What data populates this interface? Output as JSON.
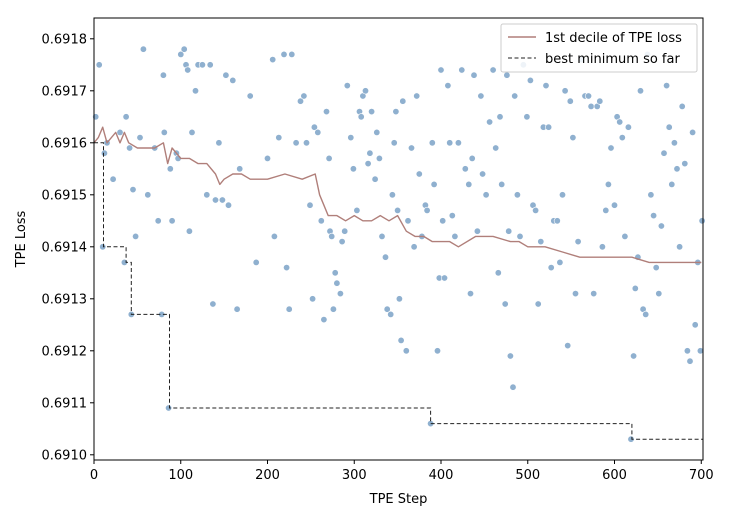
{
  "chart_data": {
    "type": "scatter",
    "title": "",
    "xlabel": "TPE Step",
    "ylabel": "TPE Loss",
    "xlim": [
      0,
      702
    ],
    "ylim": [
      0.69099,
      0.69184
    ],
    "xticks": [
      0,
      100,
      200,
      300,
      400,
      500,
      600,
      700
    ],
    "yticks": [
      0.691,
      0.6911,
      0.6912,
      0.6913,
      0.6914,
      0.6915,
      0.6916,
      0.6917,
      0.6918
    ],
    "ytick_labels": [
      "0.6910",
      "0.6911",
      "0.6912",
      "0.6913",
      "0.6914",
      "0.6915",
      "0.6916",
      "0.6917",
      "0.6918"
    ],
    "grid": false,
    "legend_position": "top-right",
    "colors": {
      "scatter": "#8fb0cf",
      "decile": "#b07f7a",
      "best": "#222222"
    },
    "series": [
      {
        "name": "1st decile of TPE loss",
        "type": "line",
        "style": "solid",
        "x": [
          0,
          5,
          10,
          15,
          20,
          25,
          30,
          35,
          40,
          50,
          60,
          70,
          80,
          85,
          90,
          100,
          110,
          120,
          130,
          140,
          145,
          150,
          160,
          170,
          180,
          200,
          220,
          240,
          255,
          260,
          265,
          270,
          280,
          290,
          300,
          310,
          320,
          330,
          340,
          350,
          360,
          370,
          380,
          390,
          400,
          410,
          420,
          440,
          460,
          480,
          490,
          500,
          520,
          540,
          560,
          580,
          600,
          620,
          640,
          660,
          680,
          700
        ],
        "y": [
          0.6916,
          0.69161,
          0.69163,
          0.6916,
          0.69161,
          0.69162,
          0.6916,
          0.69162,
          0.6916,
          0.69159,
          0.69159,
          0.69159,
          0.6916,
          0.69156,
          0.69159,
          0.69157,
          0.69157,
          0.69156,
          0.69156,
          0.69154,
          0.69152,
          0.69153,
          0.69154,
          0.69154,
          0.69153,
          0.69153,
          0.69154,
          0.69153,
          0.69154,
          0.6915,
          0.69148,
          0.69146,
          0.69146,
          0.69145,
          0.69146,
          0.69145,
          0.69145,
          0.69146,
          0.69145,
          0.69146,
          0.69143,
          0.69142,
          0.69142,
          0.69141,
          0.69141,
          0.69141,
          0.6914,
          0.69142,
          0.69142,
          0.69141,
          0.69141,
          0.6914,
          0.6914,
          0.69139,
          0.69138,
          0.69138,
          0.69138,
          0.69138,
          0.69137,
          0.69137,
          0.69137,
          0.69137
        ]
      },
      {
        "name": "best minimum so far",
        "type": "step",
        "style": "dashed",
        "x": [
          0,
          11,
          37,
          43,
          87,
          388,
          620,
          702
        ],
        "y": [
          0.6916,
          0.6914,
          0.69137,
          0.69127,
          0.69109,
          0.69106,
          0.69103,
          0.69103
        ]
      },
      {
        "name": "",
        "type": "scatter",
        "points": [
          [
            2,
            0.69165
          ],
          [
            6,
            0.69175
          ],
          [
            10,
            0.6914
          ],
          [
            12,
            0.69158
          ],
          [
            15,
            0.6916
          ],
          [
            22,
            0.69153
          ],
          [
            30,
            0.69162
          ],
          [
            35,
            0.69137
          ],
          [
            37,
            0.69165
          ],
          [
            41,
            0.69159
          ],
          [
            43,
            0.69127
          ],
          [
            45,
            0.69151
          ],
          [
            48,
            0.69142
          ],
          [
            53,
            0.69161
          ],
          [
            57,
            0.69178
          ],
          [
            62,
            0.6915
          ],
          [
            70,
            0.69159
          ],
          [
            74,
            0.69145
          ],
          [
            78,
            0.69127
          ],
          [
            80,
            0.69173
          ],
          [
            81,
            0.69162
          ],
          [
            86,
            0.69109
          ],
          [
            88,
            0.69155
          ],
          [
            90,
            0.69145
          ],
          [
            95,
            0.69158
          ],
          [
            97,
            0.69157
          ],
          [
            100,
            0.69177
          ],
          [
            104,
            0.69178
          ],
          [
            106,
            0.69175
          ],
          [
            108,
            0.69174
          ],
          [
            110,
            0.69143
          ],
          [
            113,
            0.69162
          ],
          [
            117,
            0.6917
          ],
          [
            120,
            0.69175
          ],
          [
            125,
            0.69175
          ],
          [
            130,
            0.6915
          ],
          [
            134,
            0.69175
          ],
          [
            137,
            0.69129
          ],
          [
            140,
            0.69149
          ],
          [
            144,
            0.6916
          ],
          [
            148,
            0.69149
          ],
          [
            152,
            0.69173
          ],
          [
            155,
            0.69148
          ],
          [
            160,
            0.69172
          ],
          [
            165,
            0.69128
          ],
          [
            168,
            0.69155
          ],
          [
            180,
            0.69169
          ],
          [
            187,
            0.69137
          ],
          [
            200,
            0.69157
          ],
          [
            206,
            0.69176
          ],
          [
            208,
            0.69142
          ],
          [
            213,
            0.69161
          ],
          [
            219,
            0.69177
          ],
          [
            222,
            0.69136
          ],
          [
            225,
            0.69128
          ],
          [
            228,
            0.69177
          ],
          [
            233,
            0.6916
          ],
          [
            238,
            0.69168
          ],
          [
            242,
            0.69169
          ],
          [
            245,
            0.6916
          ],
          [
            249,
            0.69148
          ],
          [
            252,
            0.6913
          ],
          [
            254,
            0.69163
          ],
          [
            258,
            0.69162
          ],
          [
            262,
            0.69145
          ],
          [
            265,
            0.69126
          ],
          [
            268,
            0.69166
          ],
          [
            271,
            0.69157
          ],
          [
            272,
            0.69143
          ],
          [
            274,
            0.69142
          ],
          [
            276,
            0.69128
          ],
          [
            278,
            0.69135
          ],
          [
            280,
            0.69133
          ],
          [
            284,
            0.69131
          ],
          [
            286,
            0.69141
          ],
          [
            289,
            0.69143
          ],
          [
            292,
            0.69171
          ],
          [
            296,
            0.69161
          ],
          [
            299,
            0.69155
          ],
          [
            303,
            0.69147
          ],
          [
            306,
            0.69166
          ],
          [
            308,
            0.69165
          ],
          [
            310,
            0.69169
          ],
          [
            313,
            0.6917
          ],
          [
            316,
            0.69156
          ],
          [
            318,
            0.69158
          ],
          [
            320,
            0.69166
          ],
          [
            324,
            0.69153
          ],
          [
            326,
            0.69162
          ],
          [
            329,
            0.69157
          ],
          [
            332,
            0.69142
          ],
          [
            336,
            0.69138
          ],
          [
            338,
            0.69128
          ],
          [
            342,
            0.69127
          ],
          [
            344,
            0.6915
          ],
          [
            346,
            0.6916
          ],
          [
            348,
            0.69166
          ],
          [
            350,
            0.69147
          ],
          [
            352,
            0.6913
          ],
          [
            354,
            0.69122
          ],
          [
            356,
            0.69168
          ],
          [
            360,
            0.6912
          ],
          [
            362,
            0.69145
          ],
          [
            366,
            0.69159
          ],
          [
            369,
            0.6914
          ],
          [
            372,
            0.69169
          ],
          [
            375,
            0.69154
          ],
          [
            378,
            0.69142
          ],
          [
            382,
            0.69148
          ],
          [
            384,
            0.69147
          ],
          [
            388,
            0.69106
          ],
          [
            390,
            0.6916
          ],
          [
            392,
            0.69152
          ],
          [
            396,
            0.6912
          ],
          [
            398,
            0.69134
          ],
          [
            400,
            0.69174
          ],
          [
            402,
            0.69145
          ],
          [
            404,
            0.69134
          ],
          [
            408,
            0.69171
          ],
          [
            410,
            0.6916
          ],
          [
            413,
            0.69146
          ],
          [
            416,
            0.69142
          ],
          [
            420,
            0.6916
          ],
          [
            424,
            0.69174
          ],
          [
            428,
            0.69155
          ],
          [
            432,
            0.69152
          ],
          [
            434,
            0.69131
          ],
          [
            436,
            0.69157
          ],
          [
            438,
            0.69173
          ],
          [
            442,
            0.69143
          ],
          [
            446,
            0.69169
          ],
          [
            448,
            0.69154
          ],
          [
            452,
            0.6915
          ],
          [
            456,
            0.69164
          ],
          [
            460,
            0.69174
          ],
          [
            463,
            0.69159
          ],
          [
            466,
            0.69135
          ],
          [
            468,
            0.69165
          ],
          [
            470,
            0.69152
          ],
          [
            474,
            0.69129
          ],
          [
            476,
            0.69173
          ],
          [
            478,
            0.69143
          ],
          [
            480,
            0.69119
          ],
          [
            483,
            0.69113
          ],
          [
            485,
            0.69169
          ],
          [
            488,
            0.6915
          ],
          [
            491,
            0.69142
          ],
          [
            495,
            0.69175
          ],
          [
            499,
            0.69165
          ],
          [
            503,
            0.69172
          ],
          [
            506,
            0.69148
          ],
          [
            509,
            0.69147
          ],
          [
            512,
            0.69129
          ],
          [
            515,
            0.69141
          ],
          [
            518,
            0.69163
          ],
          [
            521,
            0.69171
          ],
          [
            524,
            0.69163
          ],
          [
            527,
            0.69136
          ],
          [
            530,
            0.69145
          ],
          [
            534,
            0.69145
          ],
          [
            537,
            0.69137
          ],
          [
            540,
            0.6915
          ],
          [
            543,
            0.6917
          ],
          [
            546,
            0.69121
          ],
          [
            549,
            0.69168
          ],
          [
            552,
            0.69161
          ],
          [
            555,
            0.69131
          ],
          [
            558,
            0.69141
          ],
          [
            562,
            0.69176
          ],
          [
            566,
            0.69169
          ],
          [
            570,
            0.69169
          ],
          [
            573,
            0.69167
          ],
          [
            576,
            0.69131
          ],
          [
            580,
            0.69167
          ],
          [
            583,
            0.69168
          ],
          [
            586,
            0.6914
          ],
          [
            590,
            0.69147
          ],
          [
            593,
            0.69152
          ],
          [
            596,
            0.69159
          ],
          [
            600,
            0.69148
          ],
          [
            603,
            0.69165
          ],
          [
            606,
            0.69164
          ],
          [
            609,
            0.69161
          ],
          [
            612,
            0.69142
          ],
          [
            616,
            0.69163
          ],
          [
            619,
            0.69103
          ],
          [
            622,
            0.69119
          ],
          [
            624,
            0.69132
          ],
          [
            627,
            0.69138
          ],
          [
            630,
            0.6917
          ],
          [
            633,
            0.69128
          ],
          [
            636,
            0.69127
          ],
          [
            638,
            0.69177
          ],
          [
            642,
            0.6915
          ],
          [
            645,
            0.69146
          ],
          [
            648,
            0.69136
          ],
          [
            651,
            0.69131
          ],
          [
            654,
            0.69144
          ],
          [
            657,
            0.69158
          ],
          [
            660,
            0.69171
          ],
          [
            663,
            0.69163
          ],
          [
            666,
            0.69152
          ],
          [
            669,
            0.6916
          ],
          [
            672,
            0.69155
          ],
          [
            675,
            0.6914
          ],
          [
            678,
            0.69167
          ],
          [
            681,
            0.69156
          ],
          [
            684,
            0.6912
          ],
          [
            687,
            0.69118
          ],
          [
            690,
            0.69162
          ],
          [
            693,
            0.69125
          ],
          [
            696,
            0.69137
          ],
          [
            699,
            0.6912
          ],
          [
            701,
            0.69145
          ]
        ]
      }
    ]
  }
}
